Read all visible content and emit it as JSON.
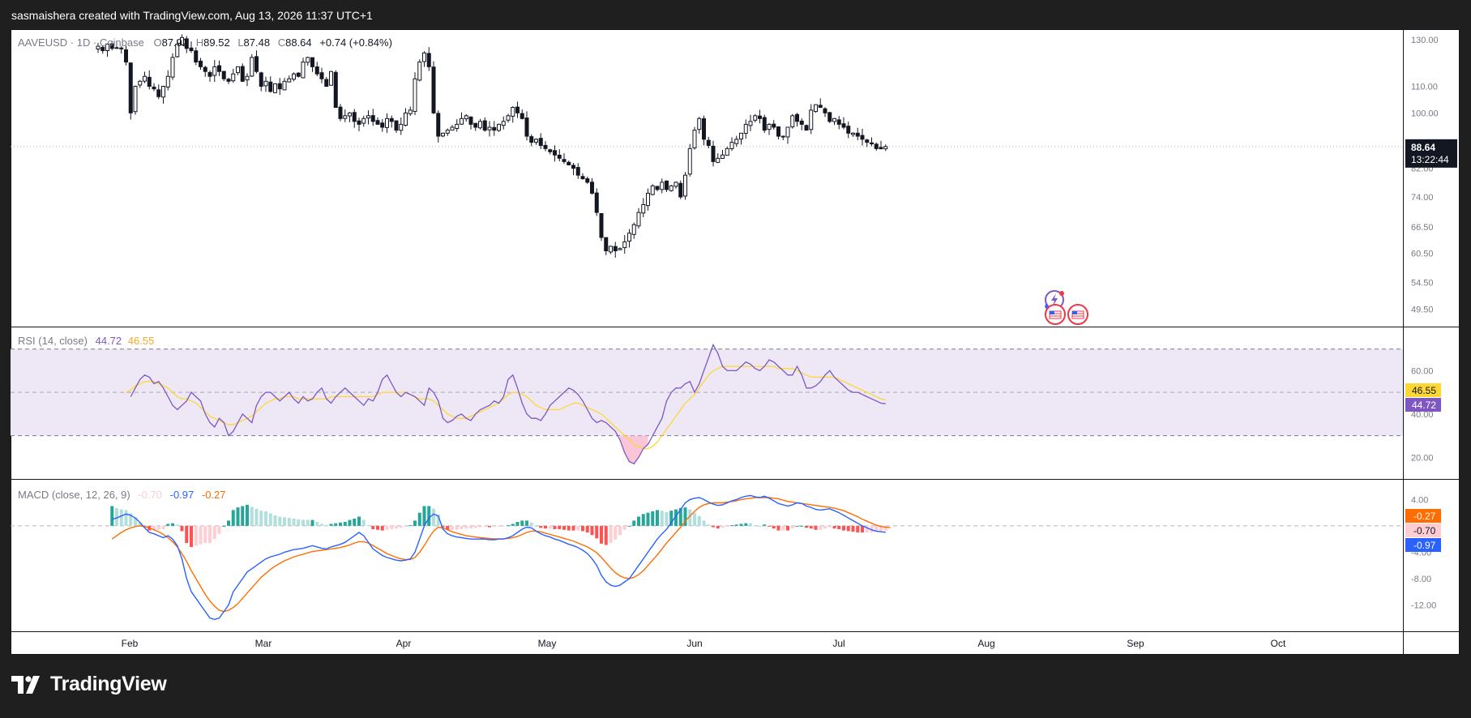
{
  "header": {
    "attribution": "sasmaishera created with TradingView.com, Aug 13, 2026 11:37 UTC+1"
  },
  "branding": {
    "logo_text": "TradingView"
  },
  "colors": {
    "background_dark": "#1f1f1f",
    "pane": "#ffffff",
    "up_candle": "#ffffff",
    "down_candle": "#131722",
    "rsi_line": "#7e57c2",
    "rsi_ma": "#fdd835",
    "rsi_band": "#ede7f6",
    "macd_line": "#2962ff",
    "signal_line": "#ff6d00",
    "hist_up_strong": "#26a69a",
    "hist_up_weak": "#b2dfdb",
    "hist_down_strong": "#ff5252",
    "hist_down_weak": "#ffcdd2"
  },
  "chart_data": [
    {
      "type": "candlestick",
      "legend": {
        "symbol": "AAVEUSD · 1D · Coinbase",
        "o_label": "O",
        "o": "87.92",
        "h_label": "H",
        "h": "89.52",
        "l_label": "L",
        "l": "87.48",
        "c_label": "C",
        "c": "88.64",
        "change": "+0.74 (+0.84%)"
      },
      "price_axis": {
        "scale": "log",
        "ticks": [
          "130.00",
          "110.00",
          "100.00",
          "82.00",
          "74.00",
          "66.50",
          "60.50",
          "54.50",
          "49.50"
        ],
        "range": [
          46.5,
          135
        ]
      },
      "last_price_label": {
        "price": "88.64",
        "countdown": "13:22:44"
      },
      "time_axis": {
        "ticks": [
          "Feb",
          "Mar",
          "Apr",
          "May",
          "Jun",
          "Jul",
          "Aug",
          "Sep",
          "Oct"
        ]
      },
      "approx_daily_closes": [
        127,
        125,
        128,
        126,
        126.2,
        125.8,
        120,
        100,
        110,
        112,
        114,
        110,
        109,
        106,
        110,
        114,
        122,
        128,
        131,
        126,
        125,
        120,
        118,
        116,
        114,
        118,
        116,
        113,
        112,
        115,
        118,
        112,
        114,
        122,
        116,
        110,
        112,
        108,
        111,
        109,
        112,
        113,
        115,
        114,
        120,
        122,
        118,
        115,
        113,
        110,
        116,
        102,
        98,
        99,
        100,
        97,
        96,
        98,
        99,
        97,
        96,
        95,
        98,
        97,
        94,
        96,
        100,
        101,
        113,
        120,
        124,
        118,
        100,
        92,
        93,
        94,
        95,
        96,
        98,
        99,
        96,
        95,
        97,
        94,
        95,
        94,
        96,
        97,
        99,
        102,
        100,
        98,
        92,
        90,
        91,
        89,
        88,
        87,
        86,
        85,
        84,
        83,
        82,
        80,
        79,
        78,
        75,
        70,
        64,
        61,
        62,
        61,
        61.5,
        63,
        65,
        67,
        70,
        72,
        75,
        77,
        76,
        78,
        76,
        77,
        78,
        74,
        80,
        88,
        94,
        98,
        91,
        89,
        84,
        85,
        86,
        88,
        90,
        91,
        93,
        96,
        97,
        99,
        98,
        94,
        96,
        95,
        92,
        92,
        95,
        99,
        97,
        96,
        94,
        101,
        103,
        102,
        100,
        97,
        98,
        96,
        95,
        93,
        93,
        92,
        91,
        90,
        89.5,
        88,
        87.92,
        88.64
      ]
    },
    {
      "type": "line",
      "legend": {
        "name": "RSI (14, close)",
        "v1": "44.72",
        "v2": "46.55"
      },
      "axis": {
        "ticks": [
          "60.00",
          "40.00",
          "20.00"
        ],
        "range": [
          10,
          80
        ],
        "bands": [
          30,
          50,
          70
        ]
      },
      "series": [
        {
          "name": "RSI",
          "last": "44.72",
          "values": [
            48,
            52,
            56,
            58,
            57,
            54,
            55,
            52,
            48,
            44,
            42,
            44,
            46,
            50,
            48,
            46,
            40,
            36,
            34,
            38,
            36,
            30,
            32,
            36,
            40,
            38,
            36,
            44,
            48,
            50,
            50,
            48,
            46,
            48,
            50,
            47,
            45,
            48,
            46,
            47,
            50,
            52,
            47,
            45,
            48,
            50,
            52,
            50,
            48,
            46,
            44,
            47,
            46,
            50,
            56,
            58,
            54,
            50,
            48,
            50,
            49,
            48,
            46,
            44,
            52,
            50,
            46,
            38,
            36,
            37,
            39,
            40,
            38,
            37,
            40,
            42,
            43,
            44,
            46,
            45,
            48,
            56,
            58,
            52,
            45,
            40,
            38,
            38,
            37,
            40,
            44,
            46,
            48,
            50,
            52,
            51,
            49,
            46,
            42,
            38,
            36,
            37,
            36,
            34,
            32,
            28,
            22,
            18,
            17,
            20,
            24,
            26,
            30,
            34,
            38,
            46,
            50,
            52,
            52,
            54,
            55,
            50,
            54,
            60,
            66,
            72,
            68,
            62,
            60,
            60,
            60,
            62,
            64,
            63,
            61,
            60,
            62,
            65,
            64,
            62,
            60,
            58,
            58,
            62,
            58,
            52,
            52,
            53,
            55,
            58,
            60,
            57,
            55,
            53,
            51,
            50,
            50,
            49,
            48,
            47,
            46,
            45,
            44.72
          ]
        },
        {
          "name": "RSI-based MA",
          "last": "46.55",
          "values": [
            50,
            51,
            53,
            54,
            55,
            55,
            55,
            54,
            53,
            52,
            50,
            48,
            47,
            47,
            46,
            45,
            43,
            41,
            39,
            38,
            37,
            36,
            35,
            35,
            36,
            37,
            38,
            39,
            41,
            43,
            45,
            46,
            47,
            47,
            48,
            48,
            48,
            47,
            47,
            47,
            47,
            47,
            47,
            47,
            48,
            48,
            48,
            48,
            48,
            48,
            48,
            48,
            48,
            48,
            49,
            50,
            50,
            50,
            50,
            50,
            50,
            49,
            48,
            47,
            47,
            47,
            46,
            44,
            42,
            40,
            39,
            38,
            38,
            38,
            39,
            40,
            41,
            42,
            43,
            44,
            45,
            47,
            49,
            50,
            50,
            49,
            48,
            46,
            44,
            43,
            42,
            42,
            42,
            42,
            43,
            44,
            45,
            45,
            44,
            43,
            42,
            41,
            40,
            38,
            36,
            34,
            32,
            30,
            28,
            26,
            25,
            24,
            24,
            25,
            27,
            30,
            33,
            36,
            39,
            42,
            45,
            47,
            49,
            52,
            55,
            58,
            60,
            61,
            62,
            62,
            62,
            62,
            62,
            62,
            62,
            62,
            62,
            62,
            62,
            62,
            61,
            61,
            61,
            61,
            60,
            59,
            58,
            57,
            57,
            57,
            57,
            57,
            57,
            56,
            55,
            54,
            53,
            52,
            51,
            50,
            49,
            48,
            47,
            46.55
          ]
        }
      ]
    },
    {
      "type": "bar+line",
      "legend": {
        "name": "MACD (close, 12, 26, 9)",
        "hist": "-0.70",
        "macd": "-0.97",
        "signal": "-0.27"
      },
      "axis": {
        "ticks": [
          "4.00",
          "-4.00",
          "-8.00",
          "-12.00"
        ],
        "range": [
          -16,
          7
        ],
        "zero_line": 0
      },
      "series": [
        {
          "name": "MACD",
          "last": "-0.97",
          "values": [
            1,
            1.2,
            1.5,
            1.8,
            1.6,
            1.2,
            0.5,
            -0.3,
            -1,
            -1.2,
            -1.5,
            -1.8,
            -1.5,
            -2,
            -3,
            -5,
            -8,
            -10,
            -11,
            -12,
            -13,
            -14,
            -14.2,
            -14,
            -13,
            -12,
            -10,
            -9,
            -8,
            -7,
            -6.5,
            -6,
            -5.5,
            -5,
            -4.7,
            -4.5,
            -4.3,
            -4,
            -3.8,
            -3.6,
            -3.5,
            -3.4,
            -3.2,
            -3,
            -3.2,
            -3.4,
            -3.5,
            -3.2,
            -3,
            -2.8,
            -2.5,
            -2,
            -1.5,
            -1,
            -1.5,
            -2.5,
            -3.5,
            -4,
            -4.5,
            -4.8,
            -5,
            -5.2,
            -5.3,
            -5.2,
            -5,
            -4,
            -2,
            0,
            1.2,
            1.8,
            1.5,
            -0.5,
            -1.2,
            -1.5,
            -1.7,
            -1.8,
            -1.9,
            -2,
            -2,
            -2,
            -2,
            -2.1,
            -2.1,
            -2,
            -2,
            -1.8,
            -1.5,
            -1,
            -0.5,
            -0.2,
            -0.3,
            -0.8,
            -1.2,
            -1.5,
            -1.7,
            -2,
            -2.2,
            -2.5,
            -2.8,
            -3,
            -3.3,
            -3.7,
            -4.2,
            -5,
            -6,
            -7.5,
            -8.5,
            -9,
            -9.2,
            -9,
            -8.5,
            -8,
            -7,
            -6,
            -5,
            -4,
            -3,
            -2,
            -1.2,
            -0.5,
            0.5,
            1.5,
            2.5,
            3.5,
            4,
            4.2,
            4.3,
            4,
            3.6,
            3.3,
            3.1,
            3.2,
            3.5,
            3.8,
            4,
            4.3,
            4.5,
            4.6,
            4.4,
            4.3,
            4.5,
            4.2,
            3.8,
            3.4,
            3.2,
            3,
            3.2,
            3.5,
            3.4,
            3,
            2.8,
            2.5,
            2.4,
            2.5,
            2.6,
            2.3,
            2,
            1.6,
            1.2,
            0.8,
            0.4,
            0,
            -0.3,
            -0.6,
            -0.8,
            -0.9,
            -0.97
          ]
        },
        {
          "name": "Signal",
          "last": "-0.27",
          "values": [
            -2,
            -1.5,
            -1,
            -0.6,
            -0.3,
            -0.1,
            0,
            -0.1,
            -0.3,
            -0.6,
            -0.9,
            -1.3,
            -1.8,
            -2.4,
            -3.2,
            -4.2,
            -5.4,
            -6.8,
            -8,
            -9.2,
            -10.4,
            -11.4,
            -12.2,
            -12.8,
            -13,
            -12.8,
            -12.4,
            -11.8,
            -11,
            -10.2,
            -9.4,
            -8.6,
            -7.8,
            -7.2,
            -6.6,
            -6.1,
            -5.7,
            -5.3,
            -5,
            -4.7,
            -4.5,
            -4.3,
            -4.1,
            -3.9,
            -3.8,
            -3.7,
            -3.6,
            -3.5,
            -3.4,
            -3.3,
            -3.1,
            -2.9,
            -2.6,
            -2.4,
            -2.4,
            -2.6,
            -3,
            -3.4,
            -3.8,
            -4.2,
            -4.5,
            -4.8,
            -5,
            -5.1,
            -5.1,
            -4.8,
            -4,
            -3,
            -1.8,
            -0.8,
            -0.2,
            -0.3,
            -0.6,
            -0.9,
            -1.1,
            -1.3,
            -1.5,
            -1.6,
            -1.7,
            -1.8,
            -1.85,
            -1.9,
            -1.95,
            -1.97,
            -1.97,
            -1.9,
            -1.8,
            -1.6,
            -1.3,
            -1,
            -0.8,
            -0.8,
            -0.9,
            -1.1,
            -1.3,
            -1.5,
            -1.7,
            -1.9,
            -2.1,
            -2.3,
            -2.6,
            -2.9,
            -3.2,
            -3.6,
            -4.1,
            -4.8,
            -5.6,
            -6.4,
            -7.1,
            -7.6,
            -7.9,
            -8,
            -7.8,
            -7.4,
            -6.8,
            -6,
            -5.2,
            -4.4,
            -3.5,
            -2.6,
            -1.8,
            -1,
            -0.2,
            0.7,
            1.5,
            2.2,
            2.8,
            3.2,
            3.4,
            3.5,
            3.5,
            3.5,
            3.6,
            3.7,
            3.8,
            4,
            4.1,
            4.2,
            4.3,
            4.3,
            4.3,
            4.3,
            4.2,
            4.1,
            3.9,
            3.7,
            3.6,
            3.5,
            3.4,
            3.3,
            3.2,
            3.1,
            3,
            2.9,
            2.8,
            2.7,
            2.5,
            2.3,
            2,
            1.7,
            1.4,
            1,
            0.7,
            0.4,
            0.1,
            -0.1,
            -0.2,
            -0.27
          ]
        }
      ],
      "last_labels": {
        "hist": "-0.70",
        "macd": "-0.97",
        "signal": "-0.27"
      }
    }
  ]
}
